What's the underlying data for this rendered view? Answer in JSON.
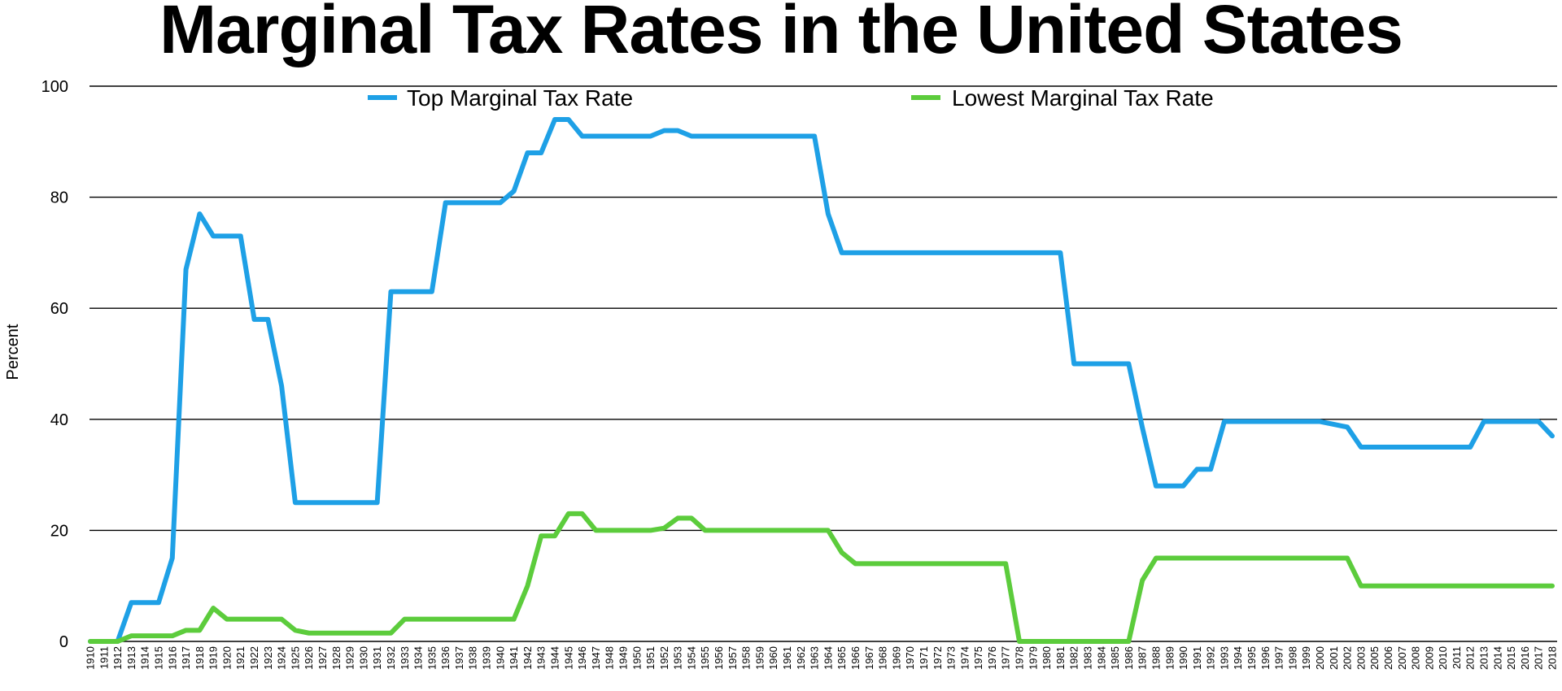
{
  "chart_data": {
    "type": "line",
    "title": "Marginal Tax Rates in the United States",
    "ylabel": "Percent",
    "xlabel": "",
    "ylim": [
      0,
      100
    ],
    "yticks": [
      0,
      20,
      40,
      60,
      80,
      100
    ],
    "grid": "horizontal",
    "legend": "top",
    "x": [
      1910,
      1911,
      1912,
      1913,
      1914,
      1915,
      1916,
      1917,
      1918,
      1919,
      1920,
      1921,
      1922,
      1923,
      1924,
      1925,
      1926,
      1927,
      1928,
      1929,
      1930,
      1931,
      1932,
      1933,
      1934,
      1935,
      1936,
      1937,
      1938,
      1939,
      1940,
      1941,
      1942,
      1943,
      1944,
      1945,
      1946,
      1947,
      1948,
      1949,
      1950,
      1951,
      1952,
      1953,
      1954,
      1955,
      1956,
      1957,
      1958,
      1959,
      1960,
      1961,
      1962,
      1963,
      1964,
      1965,
      1966,
      1967,
      1968,
      1969,
      1970,
      1971,
      1972,
      1973,
      1974,
      1975,
      1976,
      1977,
      1978,
      1979,
      1980,
      1981,
      1982,
      1983,
      1984,
      1985,
      1986,
      1987,
      1988,
      1989,
      1990,
      1991,
      1992,
      1993,
      1994,
      1995,
      1996,
      1997,
      1998,
      1999,
      2000,
      2001,
      2002,
      2003,
      2005,
      2006,
      2007,
      2008,
      2009,
      2010,
      2011,
      2012,
      2013,
      2014,
      2015,
      2016,
      2017,
      2018
    ],
    "series": [
      {
        "name": "Top Marginal Tax Rate",
        "color": "#1ea0e6",
        "values": [
          0,
          0,
          0,
          7,
          7,
          7,
          15,
          67,
          77,
          73,
          73,
          73,
          58,
          58,
          46,
          25,
          25,
          25,
          25,
          25,
          25,
          25,
          63,
          63,
          63,
          63,
          79,
          79,
          79,
          79,
          79,
          81.1,
          88,
          88,
          94,
          94,
          91,
          91,
          91,
          91,
          91,
          91,
          92,
          92,
          91,
          91,
          91,
          91,
          91,
          91,
          91,
          91,
          91,
          91,
          77,
          70,
          70,
          70,
          70,
          70,
          70,
          70,
          70,
          70,
          70,
          70,
          70,
          70,
          70,
          70,
          70,
          70,
          50,
          50,
          50,
          50,
          50,
          38.5,
          28,
          28,
          28,
          31,
          31,
          39.6,
          39.6,
          39.6,
          39.6,
          39.6,
          39.6,
          39.6,
          39.6,
          39.1,
          38.6,
          35,
          35,
          35,
          35,
          35,
          35,
          35,
          35,
          35,
          39.6,
          39.6,
          39.6,
          39.6,
          39.6,
          37
        ]
      },
      {
        "name": "Lowest Marginal Tax Rate",
        "color": "#5ccc3c",
        "values": [
          0,
          0,
          0,
          1,
          1,
          1,
          1,
          2,
          2,
          6,
          4,
          4,
          4,
          4,
          4,
          2,
          1.5,
          1.5,
          1.5,
          1.5,
          1.5,
          1.5,
          1.5,
          4,
          4,
          4,
          4,
          4,
          4,
          4,
          4,
          4,
          10,
          19,
          19,
          23,
          23,
          20,
          20,
          20,
          20,
          20,
          20.4,
          22.2,
          22.2,
          20,
          20,
          20,
          20,
          20,
          20,
          20,
          20,
          20,
          20,
          16,
          14,
          14,
          14,
          14,
          14,
          14,
          14,
          14,
          14,
          14,
          14,
          14,
          0,
          0,
          0,
          0,
          0,
          0,
          0,
          0,
          0,
          11,
          15,
          15,
          15,
          15,
          15,
          15,
          15,
          15,
          15,
          15,
          15,
          15,
          15,
          15,
          15,
          10,
          10,
          10,
          10,
          10,
          10,
          10,
          10,
          10,
          10,
          10,
          10,
          10,
          10,
          10
        ]
      }
    ]
  }
}
